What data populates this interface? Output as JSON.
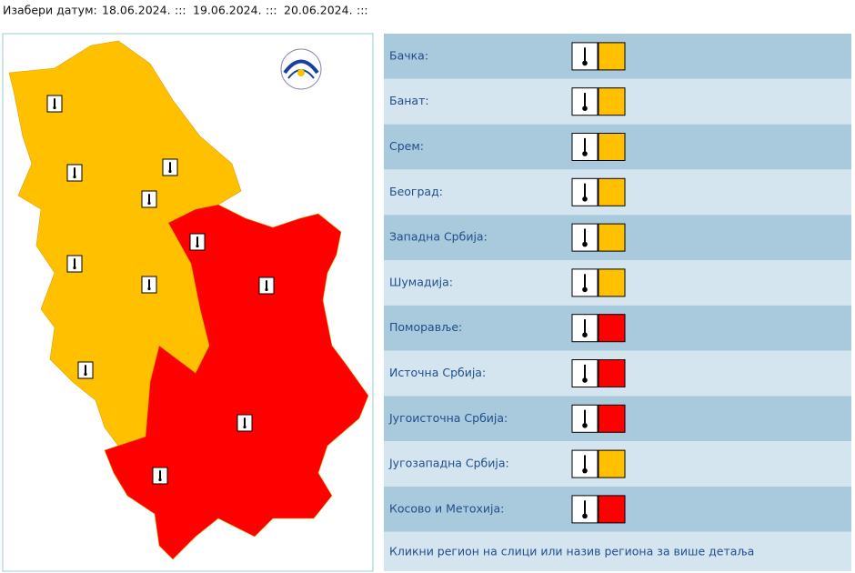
{
  "header": {
    "label": "Изабери датум:",
    "dates": [
      "18.06.2024.",
      "19.06.2024.",
      "20.06.2024."
    ],
    "separator": ":::"
  },
  "map": {
    "areas": [
      {
        "color": "#ffc000"
      },
      {
        "color": "#ff0000"
      }
    ]
  },
  "regions": [
    {
      "name": "Бачка:",
      "color": "#ffc000"
    },
    {
      "name": "Банат:",
      "color": "#ffc000"
    },
    {
      "name": "Срем:",
      "color": "#ffc000"
    },
    {
      "name": "Београд:",
      "color": "#ffc000"
    },
    {
      "name": "Западна Србија:",
      "color": "#ffc000"
    },
    {
      "name": "Шумадија:",
      "color": "#ffc000"
    },
    {
      "name": "Поморавље:",
      "color": "#ff0000"
    },
    {
      "name": "Источна Србија:",
      "color": "#ff0000"
    },
    {
      "name": "Југоисточна Србија:",
      "color": "#ff0000"
    },
    {
      "name": "Југозападна Србија:",
      "color": "#ffc000"
    },
    {
      "name": "Косово и Метохија:",
      "color": "#ff0000"
    }
  ],
  "footer": "Кликни регион на слици или назив региона за више детаља"
}
